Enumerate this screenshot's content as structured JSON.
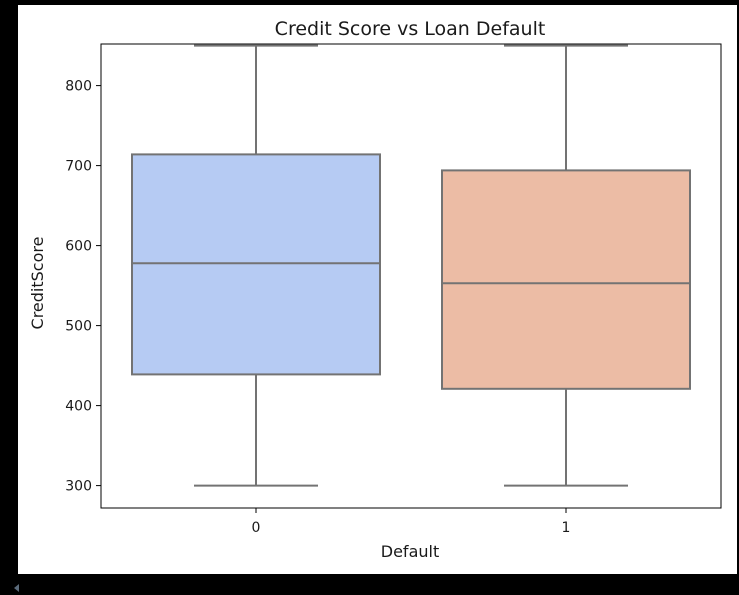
{
  "chart_data": {
    "type": "box",
    "title": "Credit Score vs Loan Default",
    "xlabel": "Default",
    "ylabel": "CreditScore",
    "ylim": [
      272,
      852
    ],
    "yticks": [
      300,
      400,
      500,
      600,
      700,
      800
    ],
    "grid": false,
    "categories": [
      "0",
      "1"
    ],
    "boxes": [
      {
        "category": "0",
        "min": 300,
        "q1": 439,
        "median": 578,
        "q3": 714,
        "max": 850,
        "color": "#b6cbf3"
      },
      {
        "category": "1",
        "min": 300,
        "q1": 421,
        "median": 553,
        "q3": 694,
        "max": 850,
        "color": "#ecbca5"
      }
    ],
    "line_color": "#737373"
  }
}
